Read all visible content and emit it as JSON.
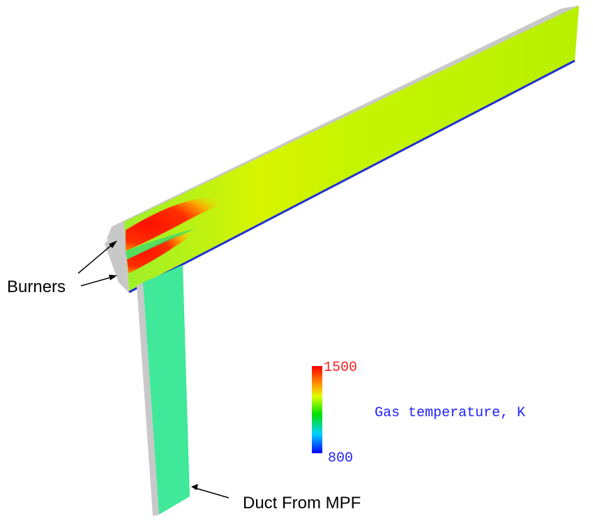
{
  "labels": {
    "burners": "Burners",
    "duct": "Duct From MPF"
  },
  "colorbar": {
    "title": "Gas temperature, K",
    "max": 1500,
    "min": 800
  }
}
